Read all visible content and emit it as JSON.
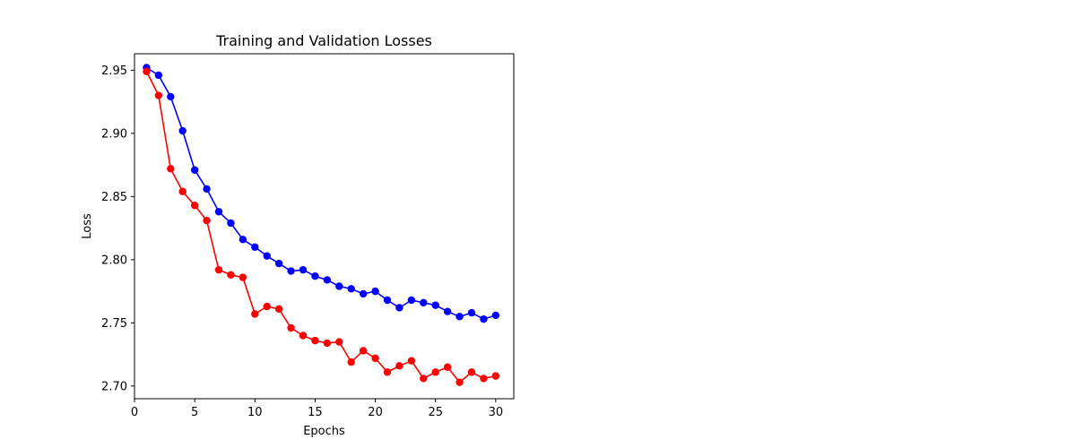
{
  "chart_data": {
    "type": "line",
    "title": "Training and Validation Losses",
    "xlabel": "Epochs",
    "ylabel": "Loss",
    "xlim": [
      0,
      31.5
    ],
    "ylim": [
      2.69,
      2.963
    ],
    "xticks": [
      0,
      5,
      10,
      15,
      20,
      25,
      30
    ],
    "yticks": [
      2.7,
      2.75,
      2.8,
      2.85,
      2.9,
      2.95
    ],
    "xtick_labels": [
      "0",
      "5",
      "10",
      "15",
      "20",
      "25",
      "30"
    ],
    "ytick_labels": [
      "2.70",
      "2.75",
      "2.80",
      "2.85",
      "2.90",
      "2.95"
    ],
    "grid": false,
    "legend": "none",
    "x": [
      1,
      2,
      3,
      4,
      5,
      6,
      7,
      8,
      9,
      10,
      11,
      12,
      13,
      14,
      15,
      16,
      17,
      18,
      19,
      20,
      21,
      22,
      23,
      24,
      25,
      26,
      27,
      28,
      29,
      30
    ],
    "series": [
      {
        "color": "#0000ff",
        "values": [
          2.952,
          2.946,
          2.929,
          2.902,
          2.871,
          2.856,
          2.838,
          2.829,
          2.816,
          2.81,
          2.803,
          2.797,
          2.791,
          2.792,
          2.787,
          2.784,
          2.779,
          2.777,
          2.773,
          2.775,
          2.768,
          2.762,
          2.768,
          2.766,
          2.764,
          2.759,
          2.755,
          2.758,
          2.753,
          2.756
        ]
      },
      {
        "color": "#ff0000",
        "values": [
          2.949,
          2.93,
          2.872,
          2.854,
          2.843,
          2.831,
          2.792,
          2.788,
          2.786,
          2.757,
          2.763,
          2.761,
          2.746,
          2.74,
          2.736,
          2.734,
          2.735,
          2.719,
          2.728,
          2.722,
          2.711,
          2.716,
          2.72,
          2.706,
          2.711,
          2.715,
          2.703,
          2.711,
          2.706,
          2.708
        ]
      }
    ]
  }
}
